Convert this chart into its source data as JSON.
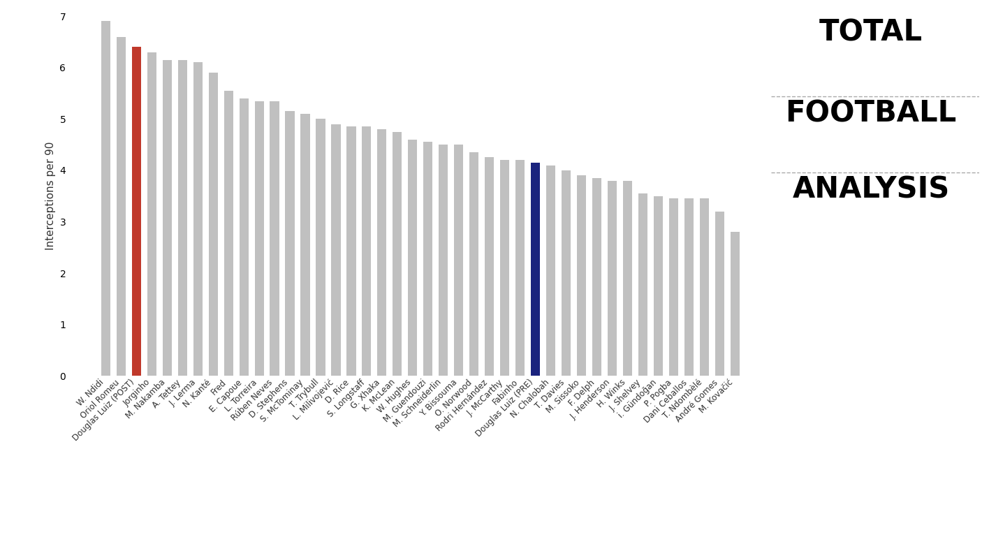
{
  "players": [
    "W. Ndidi",
    "Oriol Romeu",
    "Douglas Luiz (POST)",
    "Jorginho",
    "M. Nakamba",
    "A. Tettey",
    "J. Lerma",
    "N. Kanté",
    "Fred",
    "E. Capoue",
    "L. Torreira",
    "Rúben Neves",
    "D. Stephens",
    "S. McTominay",
    "T. Trybull",
    "L. Milivojević",
    "D. Rice",
    "S. Longstaff",
    "G. Xhaka",
    "K. McLean",
    "W. Hughes",
    "M. Guendouzi",
    "M. Schneiderlin",
    "Y. Bissouma",
    "O. Norwood",
    "Rodri Hernández",
    "J. McCarthy",
    "Fabinho",
    "Douglas Luiz (PRE)",
    "N. Chalobah",
    "T. Davies",
    "M. Sissoko",
    "F. Delph",
    "J. Henderson",
    "H. Winks",
    "J. Shelvey",
    "i. Gündoğan",
    "P. Pogba",
    "Dani Ceballos",
    "T. Ndombèlé",
    "André Gomes",
    "M. Kovačić"
  ],
  "values": [
    6.9,
    6.6,
    6.4,
    6.3,
    6.15,
    6.15,
    6.1,
    5.9,
    5.55,
    5.4,
    5.35,
    5.35,
    5.15,
    5.1,
    5.0,
    4.9,
    4.85,
    4.85,
    4.8,
    4.75,
    4.6,
    4.55,
    4.5,
    4.5,
    4.35,
    4.25,
    4.2,
    4.2,
    4.15,
    4.1,
    4.0,
    3.9,
    3.85,
    3.8,
    3.8,
    3.55,
    3.5,
    3.45,
    3.45,
    3.45,
    3.2,
    2.8
  ],
  "color_default": "#C0C0C0",
  "color_post": "#C0392B",
  "color_pre": "#1a237e",
  "post_index": 2,
  "pre_index": 28,
  "ylabel": "Interceptions per 90",
  "ylim_min": 0,
  "ylim_max": 7,
  "yticks": [
    0,
    1,
    2,
    3,
    4,
    5,
    6,
    7
  ],
  "background_color": "#ffffff",
  "logo_line1": "TOTAL",
  "logo_line2": "FOOTBALL",
  "logo_line3": "ANALYSIS",
  "logo_football_o_color": "#6ab04c",
  "bar_width": 0.6
}
